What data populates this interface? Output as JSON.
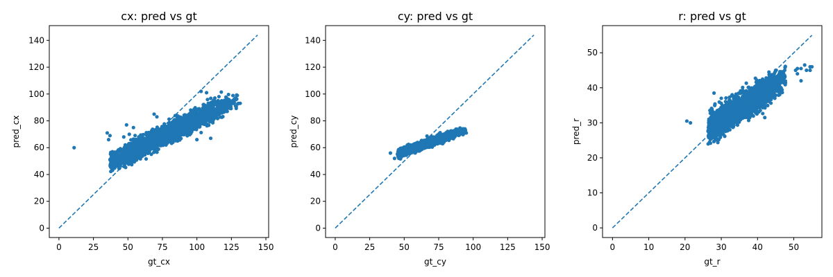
{
  "chart_data": [
    {
      "type": "scatter",
      "title": "cx: pred vs gt",
      "xlabel": "gt_cx",
      "ylabel": "pred_cx",
      "xlim": [
        -7,
        152
      ],
      "ylim": [
        -7,
        151
      ],
      "xticks": [
        0,
        25,
        50,
        75,
        100,
        125,
        150
      ],
      "yticks": [
        0,
        20,
        40,
        60,
        80,
        100,
        120,
        140
      ],
      "reference_line": {
        "style": "dashed",
        "from": [
          0,
          0
        ],
        "to": [
          144,
          144
        ]
      },
      "color": "#1f77b4",
      "cloud": [
        {
          "x0": 38,
          "x1": 132,
          "slope": 0.5,
          "intercept": 31,
          "spread": 3.5,
          "n": 2400
        },
        {
          "x0": 35,
          "x1": 55,
          "slope": 0.45,
          "intercept": 32,
          "spread": 3,
          "n": 400
        }
      ],
      "outliers": [
        [
          11,
          60
        ],
        [
          35,
          71
        ],
        [
          37,
          69
        ],
        [
          36,
          66
        ],
        [
          100,
          66
        ],
        [
          110,
          67
        ],
        [
          86,
          65
        ],
        [
          128,
          97
        ],
        [
          130,
          93
        ],
        [
          117,
          94
        ],
        [
          119,
          91
        ],
        [
          113,
          97
        ],
        [
          107,
          101
        ],
        [
          103,
          102
        ],
        [
          49,
          77
        ],
        [
          54,
          75
        ],
        [
          69,
          85
        ],
        [
          71,
          83
        ],
        [
          51,
          70
        ],
        [
          47,
          68
        ]
      ]
    },
    {
      "type": "scatter",
      "title": "cy: pred vs gt",
      "xlabel": "gt_cy",
      "ylabel": "pred_cy",
      "xlim": [
        -7,
        152
      ],
      "ylim": [
        -7,
        151
      ],
      "xticks": [
        0,
        25,
        50,
        75,
        100,
        125,
        150
      ],
      "yticks": [
        0,
        20,
        40,
        60,
        80,
        100,
        120,
        140
      ],
      "reference_line": {
        "style": "dashed",
        "from": [
          0,
          0
        ],
        "to": [
          144,
          144
        ]
      },
      "color": "#1f77b4",
      "cloud": [
        {
          "x0": 40,
          "x1": 95,
          "slope": 0.37,
          "intercept": 38.5,
          "spread": 1.4,
          "n": 2400
        }
      ],
      "outliers": [
        [
          82,
          66
        ],
        [
          85,
          67
        ],
        [
          94,
          74
        ],
        [
          95,
          71
        ],
        [
          40,
          56
        ],
        [
          43,
          52
        ]
      ]
    },
    {
      "type": "scatter",
      "title": "r: pred vs gt",
      "xlabel": "gt_r",
      "ylabel": "pred_r",
      "xlim": [
        -2.75,
        57.75
      ],
      "ylim": [
        -2.75,
        57.75
      ],
      "xticks": [
        0,
        10,
        20,
        30,
        40,
        50
      ],
      "yticks": [
        0,
        10,
        20,
        30,
        40,
        50
      ],
      "reference_line": {
        "style": "dashed",
        "from": [
          0,
          0
        ],
        "to": [
          55,
          55
        ]
      },
      "color": "#1f77b4",
      "cloud": [
        {
          "x0": 24,
          "x1": 49,
          "slope": 0.68,
          "intercept": 10.3,
          "spread": 1.8,
          "n": 2600
        }
      ],
      "outliers": [
        [
          20.5,
          30.5
        ],
        [
          21.5,
          30
        ],
        [
          28,
          38.5
        ],
        [
          30,
          37
        ],
        [
          33,
          38
        ],
        [
          42,
          31.5
        ],
        [
          50.5,
          45
        ],
        [
          51,
          44
        ],
        [
          52,
          45.5
        ],
        [
          53,
          46.5
        ],
        [
          53.5,
          45
        ],
        [
          54.5,
          46
        ],
        [
          54.5,
          45
        ],
        [
          55,
          46
        ],
        [
          52,
          42
        ],
        [
          51,
          45.5
        ],
        [
          45,
          45
        ],
        [
          47,
          44
        ],
        [
          46,
          41
        ]
      ]
    }
  ]
}
